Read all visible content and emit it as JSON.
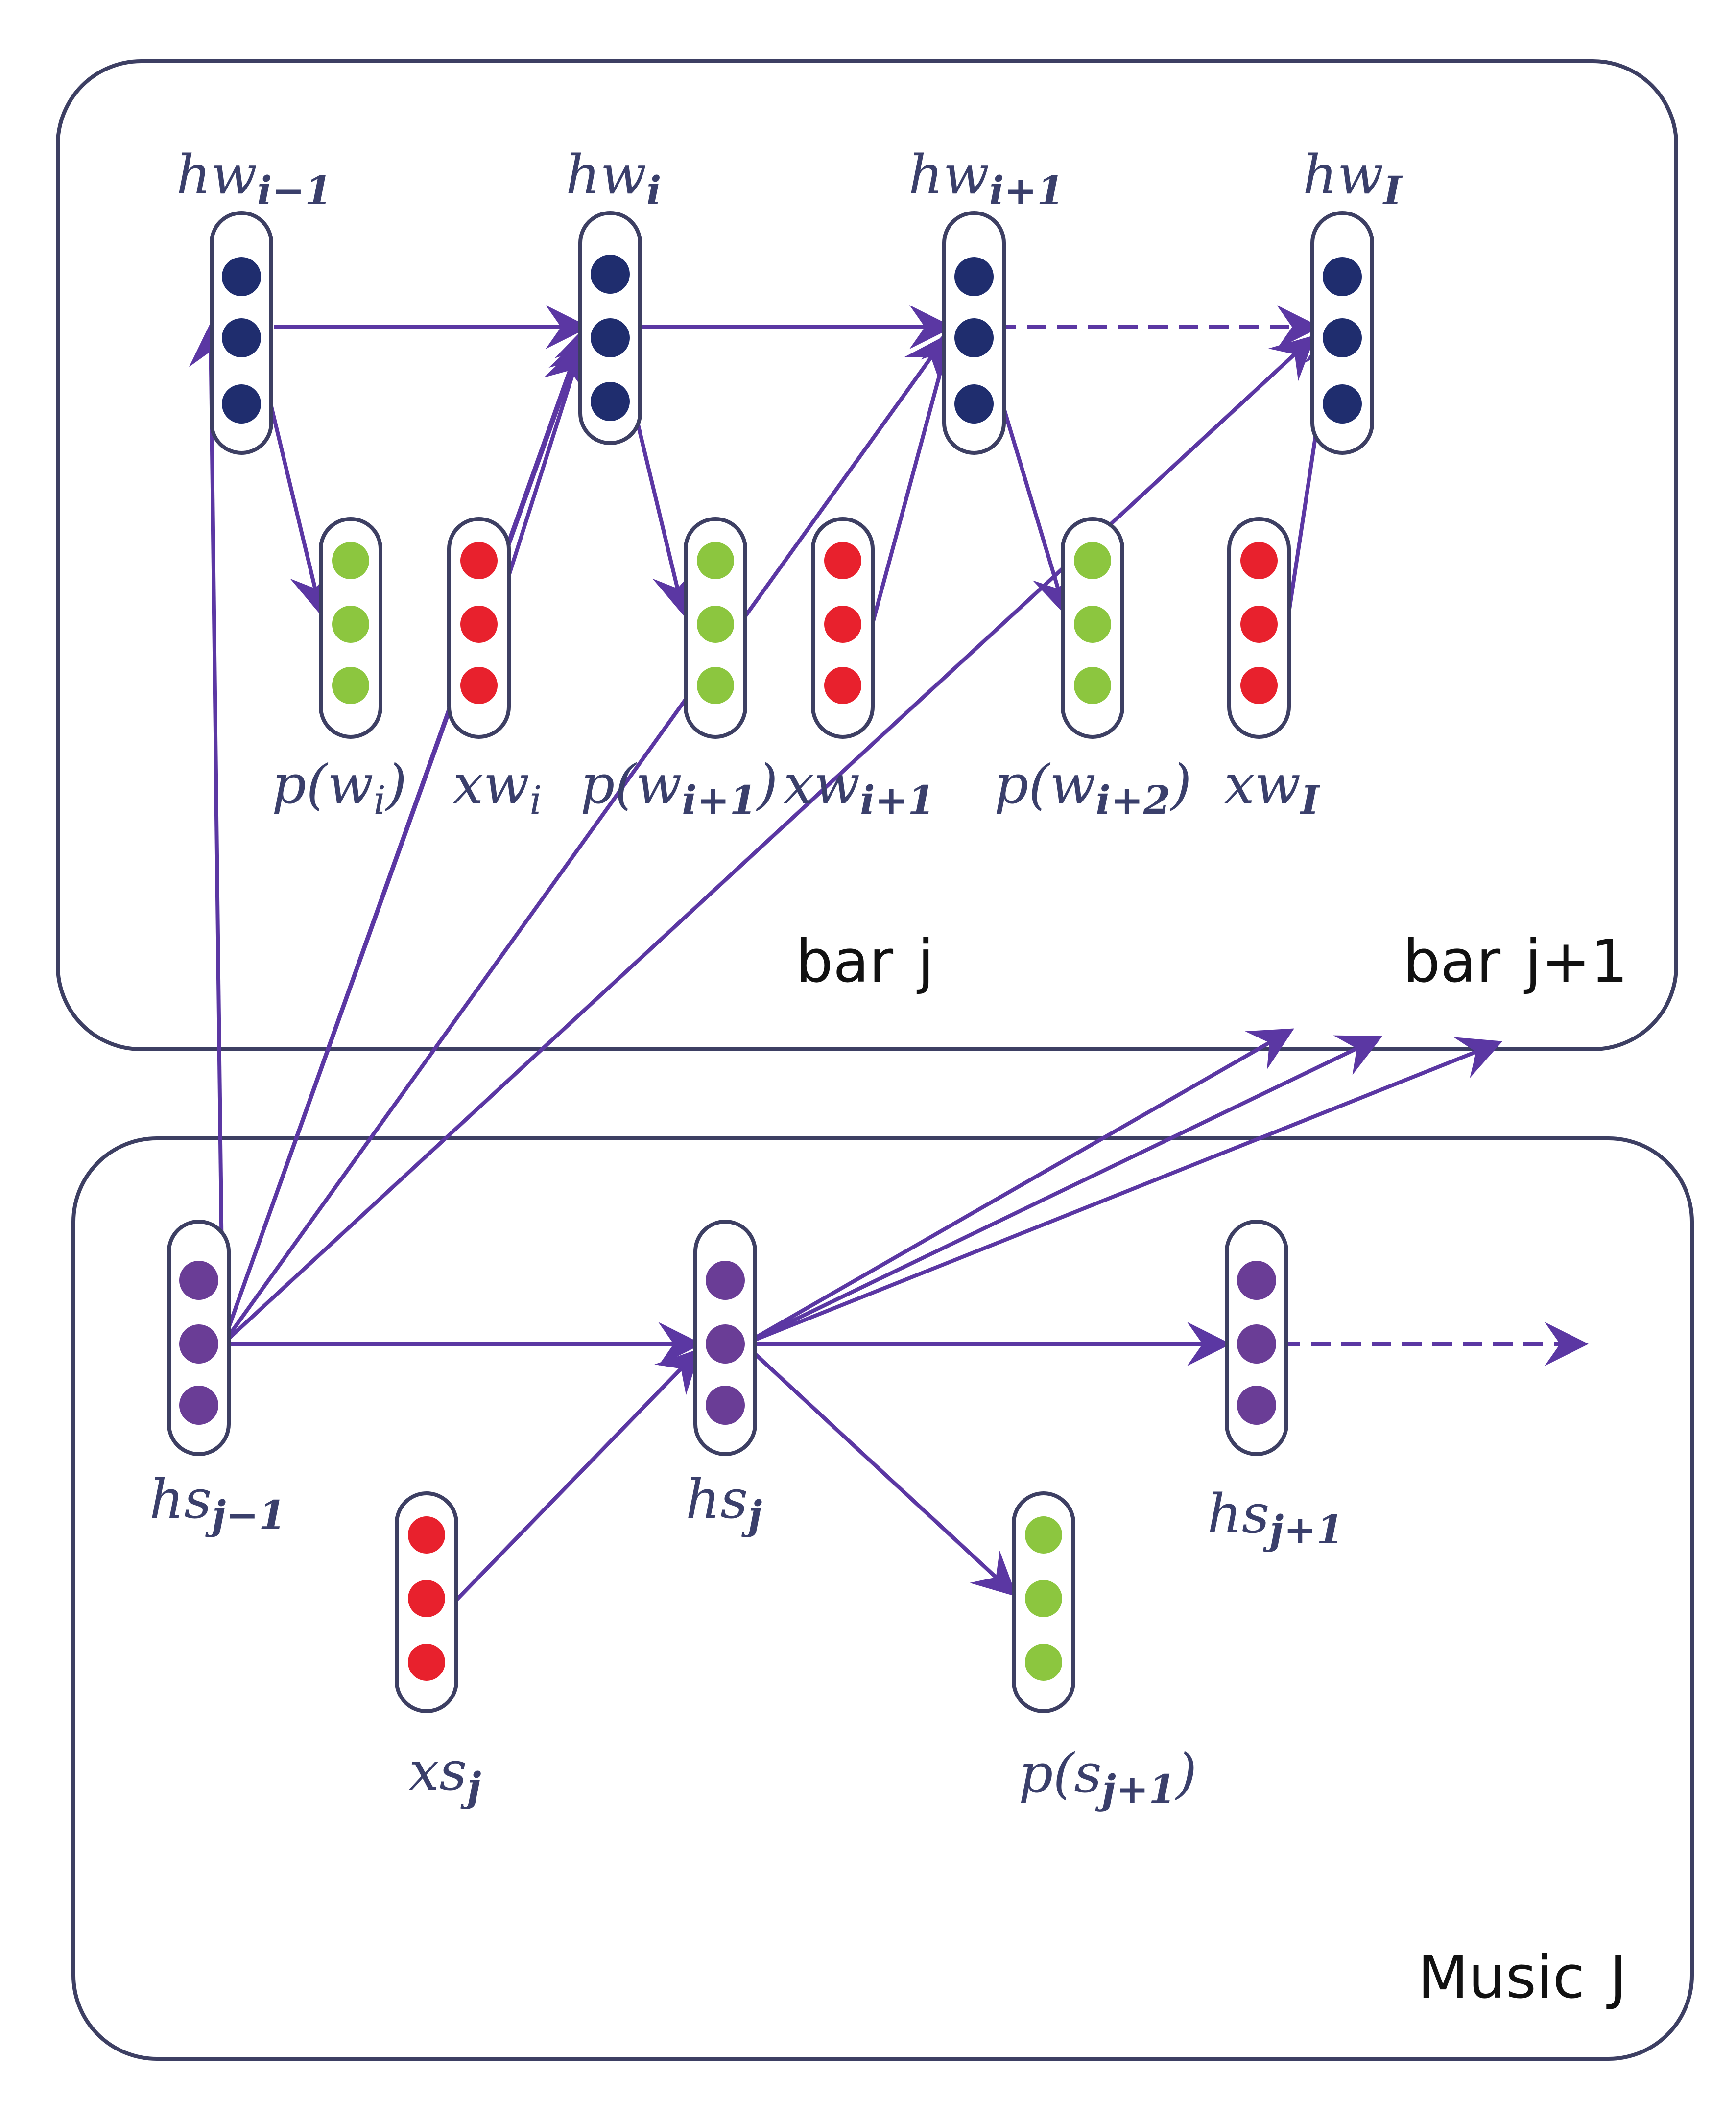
{
  "panels": {
    "bar": {
      "label_word": "bar",
      "label_index": "j"
    },
    "bar_next": {
      "label_word": "bar",
      "label_index": "j+1"
    },
    "music": {
      "label_word": "Music",
      "label_index": "J"
    }
  },
  "labels": {
    "hw_prev": {
      "base": "hw",
      "sub": "i−1"
    },
    "hw_i": {
      "base": "hw",
      "sub": "i"
    },
    "hw_next": {
      "base": "hw",
      "sub": "i+1"
    },
    "hw_last": {
      "base": "hw",
      "sub": "I"
    },
    "p_wi": {
      "open": "p(w",
      "sub": "i",
      "close": ")"
    },
    "xw_i": {
      "base": "xw",
      "sub": "i"
    },
    "p_wi1": {
      "open": "p(w",
      "sub": "i+1",
      "close": ")"
    },
    "xw_i1": {
      "base": "xw",
      "sub": "i+1"
    },
    "p_wi2": {
      "open": "p(w",
      "sub": "i+2",
      "close": ")"
    },
    "xw_last": {
      "base": "xw",
      "sub": "I"
    },
    "hs_prev": {
      "base": "hs",
      "sub": "j−1"
    },
    "hs_j": {
      "base": "hs",
      "sub": "j"
    },
    "hs_next": {
      "base": "hs",
      "sub": "j+1"
    },
    "xs_j": {
      "base": "xs",
      "sub": "j"
    },
    "p_sj1": {
      "open": "p(s",
      "sub": "j+1",
      "close": ")"
    }
  },
  "colors": {
    "hidden_word": "#1f2d6e",
    "hidden_sentence": "#6a3d96",
    "output": "#8cc63f",
    "input": "#e8212d",
    "edge": "#5b37a3",
    "frame": "#3d3f63"
  }
}
